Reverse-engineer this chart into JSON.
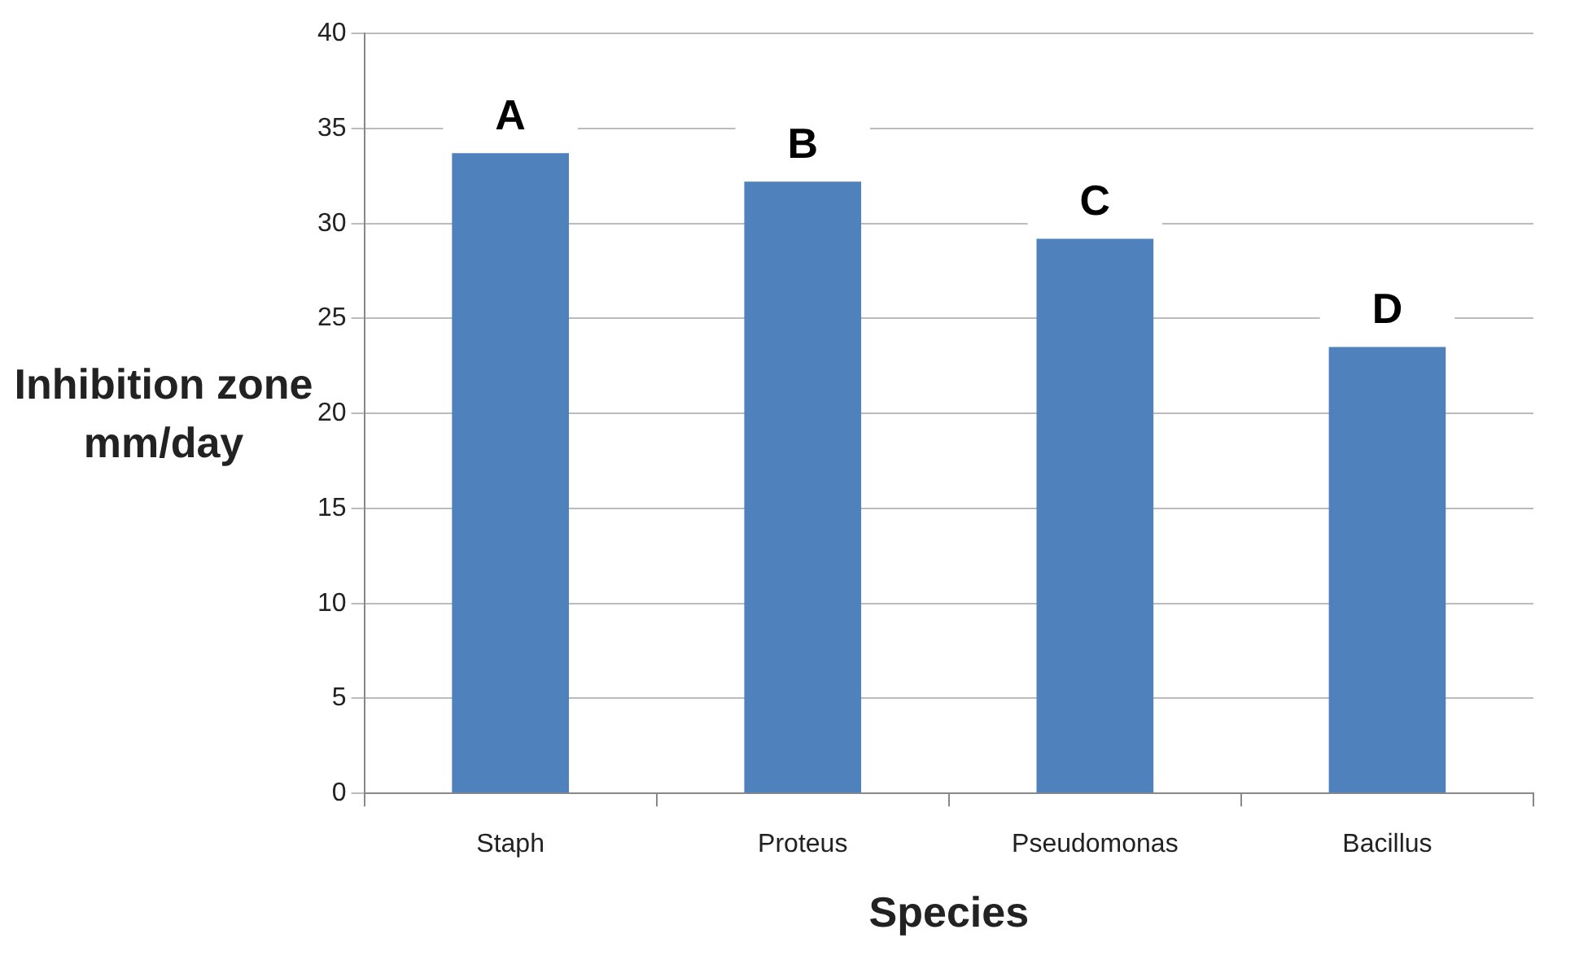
{
  "chart_data": {
    "type": "bar",
    "xlabel": "Species",
    "ylabel": "Inhibition zone mm/day",
    "categories": [
      "Staph",
      "Proteus",
      "Pseudomonas",
      "Bacillus"
    ],
    "values": [
      33.7,
      32.2,
      29.2,
      23.5
    ],
    "color": "#4f81bd",
    "ylim": [
      0,
      40
    ],
    "yticks": [
      0,
      5,
      10,
      15,
      20,
      25,
      30,
      35,
      40
    ],
    "grid": "y",
    "annotations": [
      {
        "text": "A",
        "x": "Staph",
        "y": 33.7
      },
      {
        "text": "B",
        "x": "Proteus",
        "y": 32.2
      },
      {
        "text": "C",
        "x": "Pseudomonas",
        "y": 29.2
      },
      {
        "text": "D",
        "x": "Bacillus",
        "y": 23.5
      }
    ]
  }
}
